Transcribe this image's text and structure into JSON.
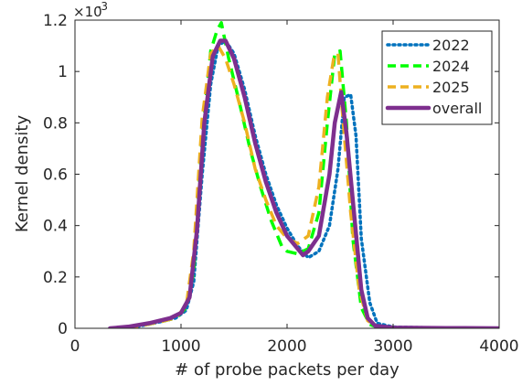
{
  "chart_data": {
    "type": "line",
    "title": "",
    "xlabel": "# of probe packets per day",
    "ylabel": "Kernel density",
    "y_exponent_label": "×10",
    "y_exponent_power": "-3",
    "xlim": [
      0,
      4000
    ],
    "ylim": [
      0,
      1.2
    ],
    "xticks": [
      0,
      1000,
      2000,
      3000,
      4000
    ],
    "xtick_labels": [
      "0",
      "1000",
      "2000",
      "3000",
      "4000"
    ],
    "yticks": [
      0,
      0.2,
      0.4,
      0.6,
      0.8,
      1.0,
      1.2
    ],
    "ytick_labels": [
      "0",
      "0.2",
      "0.4",
      "0.6",
      "0.8",
      "1",
      "1.2"
    ],
    "grid": false,
    "legend_position": "top-right",
    "series": [
      {
        "name": "2022",
        "color": "#0072BD",
        "dash": "dotted",
        "x": [
          330,
          600,
          800,
          950,
          1050,
          1120,
          1200,
          1280,
          1350,
          1420,
          1500,
          1600,
          1700,
          1800,
          1900,
          2000,
          2100,
          2200,
          2300,
          2400,
          2480,
          2540,
          2600,
          2650,
          2700,
          2780,
          2850,
          3000,
          3500,
          4000
        ],
        "y": [
          0,
          0.008,
          0.025,
          0.04,
          0.07,
          0.18,
          0.6,
          0.95,
          1.1,
          1.12,
          1.07,
          0.93,
          0.75,
          0.6,
          0.48,
          0.39,
          0.32,
          0.275,
          0.3,
          0.4,
          0.62,
          0.9,
          0.91,
          0.75,
          0.35,
          0.1,
          0.02,
          0.005,
          0.001,
          0
        ]
      },
      {
        "name": "2024",
        "color": "#00FF00",
        "dash": "dashed",
        "x": [
          330,
          600,
          800,
          950,
          1050,
          1120,
          1200,
          1280,
          1340,
          1380,
          1450,
          1550,
          1650,
          1750,
          1850,
          1950,
          2000,
          2100,
          2200,
          2300,
          2380,
          2450,
          2500,
          2560,
          2620,
          2700,
          2780,
          2850,
          3000,
          3500,
          4000
        ],
        "y": [
          0,
          0.008,
          0.025,
          0.04,
          0.08,
          0.22,
          0.75,
          1.08,
          1.16,
          1.19,
          1.05,
          0.88,
          0.7,
          0.55,
          0.42,
          0.32,
          0.3,
          0.29,
          0.31,
          0.45,
          0.8,
          1.07,
          1.08,
          0.8,
          0.35,
          0.08,
          0.015,
          0.005,
          0.002,
          0.001,
          0
        ]
      },
      {
        "name": "2025",
        "color": "#EDB120",
        "dash": "dashed",
        "x": [
          330,
          600,
          800,
          950,
          1050,
          1120,
          1200,
          1280,
          1350,
          1420,
          1500,
          1600,
          1700,
          1800,
          1900,
          2000,
          2100,
          2200,
          2300,
          2380,
          2440,
          2480,
          2520,
          2600,
          2680,
          2760,
          2850,
          3000,
          3500,
          4000
        ],
        "y": [
          0,
          0.008,
          0.025,
          0.04,
          0.09,
          0.3,
          0.82,
          1.07,
          1.1,
          1.05,
          0.95,
          0.8,
          0.62,
          0.5,
          0.4,
          0.35,
          0.33,
          0.36,
          0.55,
          0.9,
          1.05,
          1.07,
          0.85,
          0.45,
          0.15,
          0.03,
          0.008,
          0.003,
          0.001,
          0
        ]
      },
      {
        "name": "overall",
        "color": "#7E2F8E",
        "dash": "solid",
        "x": [
          330,
          500,
          700,
          900,
          1000,
          1080,
          1150,
          1220,
          1300,
          1370,
          1420,
          1500,
          1600,
          1700,
          1800,
          1900,
          2000,
          2100,
          2150,
          2200,
          2300,
          2400,
          2450,
          2510,
          2560,
          2620,
          2700,
          2760,
          2830,
          3000,
          3500,
          4000
        ],
        "y": [
          0,
          0.006,
          0.02,
          0.04,
          0.06,
          0.12,
          0.38,
          0.8,
          1.06,
          1.12,
          1.12,
          1.05,
          0.9,
          0.72,
          0.57,
          0.45,
          0.36,
          0.31,
          0.285,
          0.3,
          0.36,
          0.6,
          0.8,
          0.92,
          0.76,
          0.5,
          0.15,
          0.04,
          0.01,
          0.003,
          0.001,
          0
        ]
      }
    ]
  }
}
